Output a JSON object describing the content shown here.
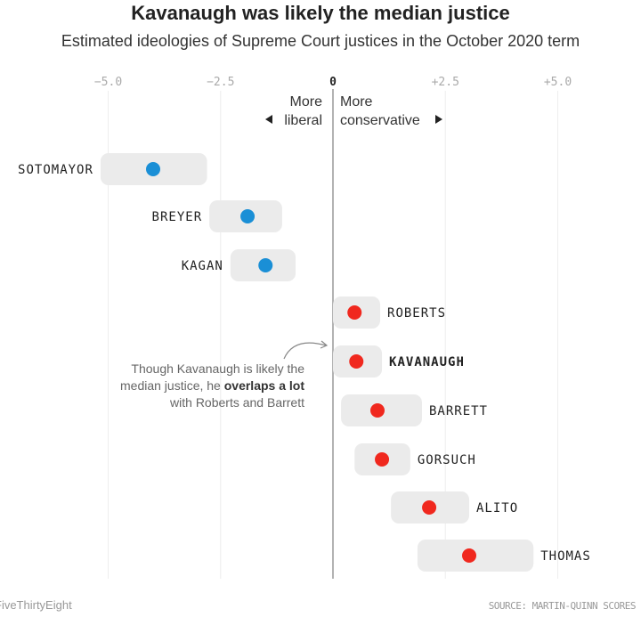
{
  "chart_data": {
    "type": "dot-range",
    "title": "Kavanaugh was likely the median justice",
    "subtitle": "Estimated ideologies of Supreme Court justices in the October 2020 term",
    "xlim": [
      -5.5,
      6.9
    ],
    "xticks": [
      {
        "value": -5.0,
        "label": "−5.0"
      },
      {
        "value": -2.5,
        "label": "−2.5"
      },
      {
        "value": 0,
        "label": "0"
      },
      {
        "value": 2.5,
        "label": "+2.5"
      },
      {
        "value": 5.0,
        "label": "+5.0"
      }
    ],
    "grid": true,
    "direction_labels": {
      "left": "More liberal",
      "left_line1": "More",
      "left_line2": "liberal",
      "right_line1": "More",
      "right_line2": "conservative"
    },
    "colors": {
      "liberal": "#1a8fd6",
      "conservative": "#f0281e",
      "range": "#ebebeb"
    },
    "justices": [
      {
        "name": "SOTOMAYOR",
        "estimate": -4.0,
        "low": -5.17,
        "high": -2.8,
        "side": "liberal"
      },
      {
        "name": "BREYER",
        "estimate": -1.9,
        "low": -2.75,
        "high": -1.13,
        "side": "liberal"
      },
      {
        "name": "KAGAN",
        "estimate": -1.5,
        "low": -2.28,
        "high": -0.83,
        "side": "liberal"
      },
      {
        "name": "ROBERTS",
        "estimate": 0.48,
        "low": 0.0,
        "high": 1.05,
        "side": "conservative"
      },
      {
        "name": "KAVANAUGH",
        "estimate": 0.52,
        "low": 0.0,
        "high": 1.09,
        "side": "conservative",
        "bold": true
      },
      {
        "name": "BARRETT",
        "estimate": 0.99,
        "low": 0.18,
        "high": 1.98,
        "side": "conservative"
      },
      {
        "name": "GORSUCH",
        "estimate": 1.09,
        "low": 0.48,
        "high": 1.72,
        "side": "conservative"
      },
      {
        "name": "ALITO",
        "estimate": 2.14,
        "low": 1.29,
        "high": 3.03,
        "side": "conservative"
      },
      {
        "name": "THOMAS",
        "estimate": 3.03,
        "low": 1.88,
        "high": 4.46,
        "side": "conservative"
      }
    ],
    "annotation": {
      "line1": "Though Kavanaugh is likely the",
      "line2_pre": "median justice, he ",
      "line2_bold": "overlaps a lot",
      "line3": "with Roberts and Barrett"
    }
  },
  "footer": {
    "brand": "FiveThirtyEight",
    "source": "SOURCE: MARTIN-QUINN SCORES"
  }
}
